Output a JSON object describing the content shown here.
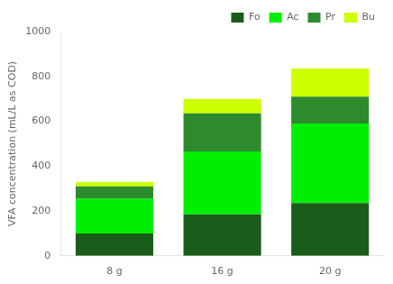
{
  "chart_data": {
    "type": "bar",
    "stacked": true,
    "categories": [
      "8 g",
      "16 g",
      "20 g"
    ],
    "series": [
      {
        "name": "Fo",
        "color": "#1a5c1a",
        "values": [
          100,
          185,
          235
        ]
      },
      {
        "name": "Ac",
        "color": "#00ee00",
        "values": [
          155,
          280,
          355
        ]
      },
      {
        "name": "Pr",
        "color": "#2d8b2d",
        "values": [
          55,
          170,
          120
        ]
      },
      {
        "name": "Bu",
        "color": "#ccff00",
        "values": [
          20,
          65,
          125
        ]
      }
    ],
    "ylabel": "VFA concentration (mL/L as COD)",
    "ylim": [
      0,
      1000
    ],
    "yticks": [
      0,
      200,
      400,
      600,
      800,
      1000
    ],
    "grid": false,
    "legend": "upper right"
  }
}
